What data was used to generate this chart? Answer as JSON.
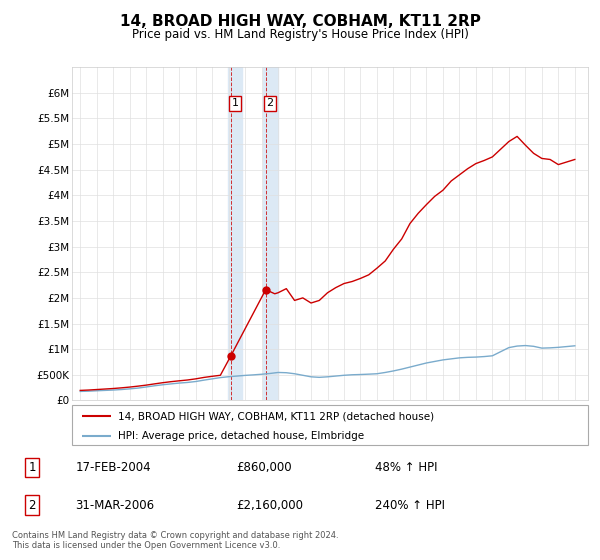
{
  "title": "14, BROAD HIGH WAY, COBHAM, KT11 2RP",
  "subtitle": "Price paid vs. HM Land Registry's House Price Index (HPI)",
  "title_fontsize": 11,
  "subtitle_fontsize": 8.5,
  "legend_line1": "14, BROAD HIGH WAY, COBHAM, KT11 2RP (detached house)",
  "legend_line2": "HPI: Average price, detached house, Elmbridge",
  "footer": "Contains HM Land Registry data © Crown copyright and database right 2024.\nThis data is licensed under the Open Government Licence v3.0.",
  "sale1_date": "17-FEB-2004",
  "sale1_price": "£860,000",
  "sale1_hpi": "48% ↑ HPI",
  "sale1_year": 2004.12,
  "sale1_value": 860000,
  "sale2_date": "31-MAR-2006",
  "sale2_price": "£2,160,000",
  "sale2_hpi": "240% ↑ HPI",
  "sale2_year": 2006.25,
  "sale2_value": 2160000,
  "red_color": "#cc0000",
  "blue_color": "#7aabcc",
  "highlight_color": "#dce9f5",
  "ylim_max": 6500000,
  "hpi_years": [
    1995.0,
    1995.5,
    1996.0,
    1996.5,
    1997.0,
    1997.5,
    1998.0,
    1998.5,
    1999.0,
    1999.5,
    2000.0,
    2000.5,
    2001.0,
    2001.5,
    2002.0,
    2002.5,
    2003.0,
    2003.5,
    2004.0,
    2004.5,
    2005.0,
    2005.5,
    2006.0,
    2006.5,
    2007.0,
    2007.5,
    2008.0,
    2008.5,
    2009.0,
    2009.5,
    2010.0,
    2010.5,
    2011.0,
    2011.5,
    2012.0,
    2012.5,
    2013.0,
    2013.5,
    2014.0,
    2014.5,
    2015.0,
    2015.5,
    2016.0,
    2016.5,
    2017.0,
    2017.5,
    2018.0,
    2018.5,
    2019.0,
    2019.5,
    2020.0,
    2020.5,
    2021.0,
    2021.5,
    2022.0,
    2022.5,
    2023.0,
    2023.5,
    2024.0,
    2024.5,
    2025.0
  ],
  "hpi_values": [
    175000,
    180000,
    188000,
    195000,
    202000,
    212000,
    225000,
    240000,
    262000,
    285000,
    305000,
    322000,
    338000,
    350000,
    368000,
    395000,
    420000,
    445000,
    462000,
    475000,
    488000,
    498000,
    510000,
    525000,
    545000,
    540000,
    520000,
    490000,
    460000,
    450000,
    460000,
    475000,
    490000,
    500000,
    505000,
    512000,
    520000,
    545000,
    575000,
    610000,
    650000,
    690000,
    730000,
    760000,
    790000,
    810000,
    830000,
    840000,
    845000,
    855000,
    870000,
    950000,
    1030000,
    1060000,
    1070000,
    1055000,
    1020000,
    1025000,
    1035000,
    1050000,
    1065000
  ],
  "red_years": [
    1995.0,
    1995.5,
    1996.0,
    1996.5,
    1997.0,
    1997.5,
    1998.0,
    1998.5,
    1999.0,
    1999.5,
    2000.0,
    2000.5,
    2001.0,
    2001.5,
    2002.0,
    2002.5,
    2003.0,
    2003.5,
    2004.12,
    2006.25,
    2006.8,
    2007.0,
    2007.5,
    2008.0,
    2008.5,
    2009.0,
    2009.5,
    2010.0,
    2010.5,
    2011.0,
    2011.5,
    2012.0,
    2012.5,
    2013.0,
    2013.5,
    2014.0,
    2014.5,
    2015.0,
    2015.5,
    2016.0,
    2016.5,
    2017.0,
    2017.5,
    2018.0,
    2018.5,
    2019.0,
    2019.5,
    2020.0,
    2020.5,
    2021.0,
    2021.5,
    2022.0,
    2022.5,
    2023.0,
    2023.5,
    2024.0,
    2024.5,
    2025.0
  ],
  "red_values": [
    195000,
    202000,
    212000,
    222000,
    232000,
    245000,
    260000,
    278000,
    298000,
    322000,
    345000,
    365000,
    382000,
    398000,
    420000,
    448000,
    470000,
    490000,
    860000,
    2160000,
    2080000,
    2100000,
    2180000,
    1950000,
    2000000,
    1900000,
    1950000,
    2100000,
    2200000,
    2280000,
    2320000,
    2380000,
    2450000,
    2580000,
    2720000,
    2950000,
    3150000,
    3450000,
    3650000,
    3820000,
    3980000,
    4100000,
    4280000,
    4400000,
    4520000,
    4620000,
    4680000,
    4750000,
    4900000,
    5050000,
    5150000,
    4980000,
    4820000,
    4720000,
    4700000,
    4600000,
    4650000,
    4700000
  ]
}
